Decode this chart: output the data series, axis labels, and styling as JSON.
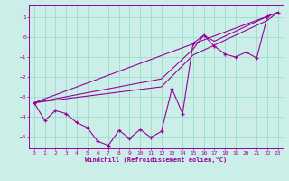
{
  "xlabel": "Windchill (Refroidissement éolien,°C)",
  "background_color": "#cceee8",
  "grid_color": "#99ddcc",
  "line_color": "#990099",
  "xlim": [
    -0.5,
    23.5
  ],
  "ylim": [
    -5.6,
    1.6
  ],
  "yticks": [
    1,
    0,
    -1,
    -2,
    -3,
    -4,
    -5
  ],
  "xticks": [
    0,
    1,
    2,
    3,
    4,
    5,
    6,
    7,
    8,
    9,
    10,
    11,
    12,
    13,
    14,
    15,
    16,
    17,
    18,
    19,
    20,
    21,
    22,
    23
  ],
  "zigzag": [
    [
      0,
      -3.3
    ],
    [
      1,
      -4.2
    ],
    [
      2,
      -3.7
    ],
    [
      3,
      -3.85
    ],
    [
      4,
      -4.3
    ],
    [
      5,
      -4.55
    ],
    [
      6,
      -5.25
    ],
    [
      7,
      -5.45
    ],
    [
      8,
      -4.7
    ],
    [
      9,
      -5.1
    ],
    [
      10,
      -4.65
    ],
    [
      11,
      -5.05
    ],
    [
      12,
      -4.75
    ],
    [
      13,
      -2.6
    ],
    [
      14,
      -3.85
    ],
    [
      15,
      -0.3
    ],
    [
      16,
      0.1
    ],
    [
      17,
      -0.45
    ],
    [
      18,
      -0.85
    ],
    [
      19,
      -1.0
    ],
    [
      20,
      -0.75
    ],
    [
      21,
      -1.05
    ],
    [
      22,
      1.05
    ],
    [
      23,
      1.25
    ]
  ],
  "line_straight": [
    [
      0,
      -3.3
    ],
    [
      23,
      1.25
    ]
  ],
  "line_upper": [
    [
      0,
      -3.3
    ],
    [
      12,
      -2.1
    ],
    [
      15,
      -0.6
    ],
    [
      16,
      0.1
    ],
    [
      17,
      -0.2
    ],
    [
      22,
      1.05
    ],
    [
      23,
      1.25
    ]
  ],
  "line_lower": [
    [
      0,
      -3.3
    ],
    [
      12,
      -2.5
    ],
    [
      15,
      -0.9
    ],
    [
      22,
      0.85
    ],
    [
      23,
      1.25
    ]
  ]
}
